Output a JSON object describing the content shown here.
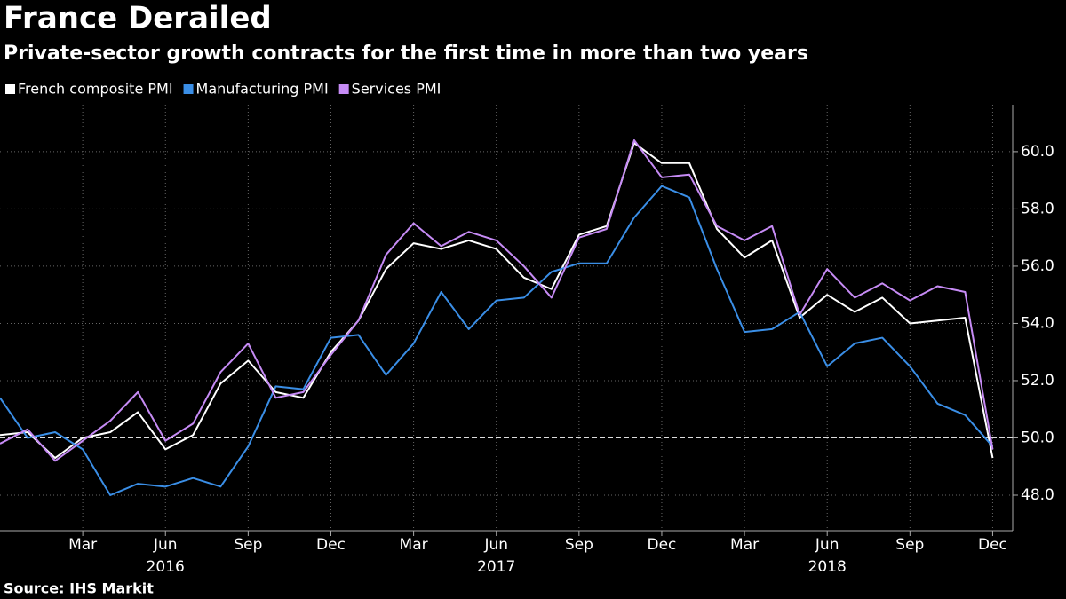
{
  "chart_data": {
    "type": "line",
    "title": "France Derailed",
    "subtitle": "Private-sector growth contracts for the first time in more than two years",
    "source": "Source: IHS Markit",
    "x": [
      "2015-12",
      "2016-01",
      "2016-02",
      "2016-03",
      "2016-04",
      "2016-05",
      "2016-06",
      "2016-07",
      "2016-08",
      "2016-09",
      "2016-10",
      "2016-11",
      "2016-12",
      "2017-01",
      "2017-02",
      "2017-03",
      "2017-04",
      "2017-05",
      "2017-06",
      "2017-07",
      "2017-08",
      "2017-09",
      "2017-10",
      "2017-11",
      "2017-12",
      "2018-01",
      "2018-02",
      "2018-03",
      "2018-04",
      "2018-05",
      "2018-06",
      "2018-07",
      "2018-08",
      "2018-09",
      "2018-10",
      "2018-11",
      "2018-12"
    ],
    "series": [
      {
        "name": "French composite PMI",
        "color": "#ffffff",
        "values": [
          50.1,
          50.2,
          49.3,
          50.0,
          50.2,
          50.9,
          49.6,
          50.1,
          51.9,
          52.7,
          51.6,
          51.4,
          53.0,
          54.1,
          55.9,
          56.8,
          56.6,
          56.9,
          56.6,
          55.6,
          55.2,
          57.1,
          57.4,
          60.3,
          59.6,
          59.6,
          57.3,
          56.3,
          56.9,
          54.2,
          55.0,
          54.4,
          54.9,
          54.0,
          54.1,
          54.2,
          49.3
        ]
      },
      {
        "name": "Manufacturing PMI",
        "color": "#3a8ee6",
        "values": [
          51.4,
          50.0,
          50.2,
          49.6,
          48.0,
          48.4,
          48.3,
          48.6,
          48.3,
          49.7,
          51.8,
          51.7,
          53.5,
          53.6,
          52.2,
          53.3,
          55.1,
          53.8,
          54.8,
          54.9,
          55.8,
          56.1,
          56.1,
          57.7,
          58.8,
          58.4,
          55.9,
          53.7,
          53.8,
          54.4,
          52.5,
          53.3,
          53.5,
          52.5,
          51.2,
          50.8,
          49.7
        ]
      },
      {
        "name": "Services PMI",
        "color": "#c68bf5",
        "values": [
          49.8,
          50.3,
          49.2,
          49.9,
          50.6,
          51.6,
          49.9,
          50.5,
          52.3,
          53.3,
          51.4,
          51.6,
          52.9,
          54.1,
          56.4,
          57.5,
          56.7,
          57.2,
          56.9,
          56.0,
          54.9,
          57.0,
          57.3,
          60.4,
          59.1,
          59.2,
          57.4,
          56.9,
          57.4,
          54.3,
          55.9,
          54.9,
          55.4,
          54.8,
          55.3,
          55.1,
          49.6
        ]
      }
    ],
    "xticks": [
      {
        "value": "2016-03",
        "label": "Mar"
      },
      {
        "value": "2016-06",
        "label": "Jun"
      },
      {
        "value": "2016-09",
        "label": "Sep"
      },
      {
        "value": "2016-12",
        "label": "Dec"
      },
      {
        "value": "2017-03",
        "label": "Mar"
      },
      {
        "value": "2017-06",
        "label": "Jun"
      },
      {
        "value": "2017-09",
        "label": "Sep"
      },
      {
        "value": "2017-12",
        "label": "Dec"
      },
      {
        "value": "2018-03",
        "label": "Mar"
      },
      {
        "value": "2018-06",
        "label": "Jun"
      },
      {
        "value": "2018-09",
        "label": "Sep"
      },
      {
        "value": "2018-12",
        "label": "Dec"
      }
    ],
    "year_labels": [
      {
        "value": "2016-06",
        "label": "2016"
      },
      {
        "value": "2017-06",
        "label": "2017"
      },
      {
        "value": "2018-06",
        "label": "2018"
      }
    ],
    "ylim": [
      46.76,
      61.64
    ],
    "yticks": [
      {
        "value": 48,
        "label": "48.0"
      },
      {
        "value": 50,
        "label": "50.0"
      },
      {
        "value": 52,
        "label": "52.0"
      },
      {
        "value": 54,
        "label": "54.0"
      },
      {
        "value": 56,
        "label": "56.0"
      },
      {
        "value": 58,
        "label": "58.0"
      },
      {
        "value": 60,
        "label": "60.0"
      }
    ],
    "baseline": 50,
    "grid": true,
    "legend": "top-left"
  }
}
